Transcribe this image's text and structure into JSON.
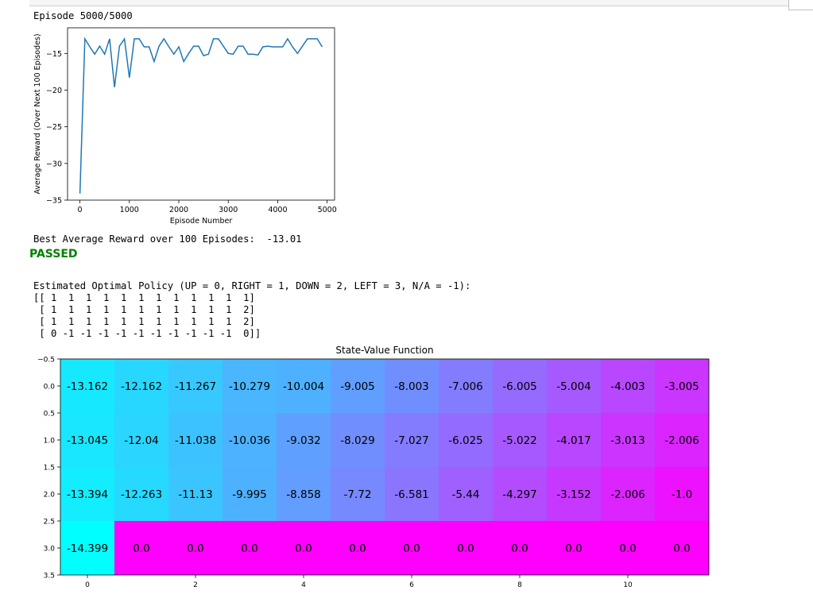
{
  "episode_text": "Episode 5000/5000",
  "best_text": "Best Average Reward over 100 Episodes:  -13.01",
  "passed_text": "PASSED",
  "policy_header": "Estimated Optimal Policy (UP = 0, RIGHT = 1, DOWN = 2, LEFT = 3, N/A = -1):",
  "policy_lines": [
    "[[ 1  1  1  1  1  1  1  1  1  1  1  1]",
    " [ 1  1  1  1  1  1  1  1  1  1  1  2]",
    " [ 1  1  1  1  1  1  1  1  1  1  1  2]",
    " [ 0 -1 -1 -1 -1 -1 -1 -1 -1 -1 -1  0]]"
  ],
  "chart_data": [
    {
      "type": "line",
      "title": "",
      "xlabel": "Episode Number",
      "ylabel": "Average Reward (Over Next 100 Episodes)",
      "xlim": [
        -250,
        5150
      ],
      "ylim": [
        -35,
        -11.5
      ],
      "xticks": [
        0,
        1000,
        2000,
        3000,
        4000,
        5000
      ],
      "yticks": [
        -35,
        -30,
        -25,
        -20,
        -15
      ],
      "grid": false,
      "line_color": "#1f77b4",
      "series": [
        {
          "x": [
            0,
            100,
            200,
            300,
            400,
            500,
            600,
            700,
            800,
            900,
            1000,
            1100,
            1200,
            1300,
            1400,
            1500,
            1600,
            1700,
            1800,
            1900,
            2000,
            2100,
            2200,
            2300,
            2400,
            2500,
            2600,
            2700,
            2800,
            2900,
            3000,
            3100,
            3200,
            3300,
            3400,
            3500,
            3600,
            3700,
            3800,
            3900,
            4000,
            4100,
            4200,
            4300,
            4400,
            4500,
            4600,
            4700,
            4800,
            4900
          ],
          "y": [
            -34.1,
            -13.0,
            -14.1,
            -15.1,
            -14.0,
            -15.1,
            -13.0,
            -19.6,
            -14.0,
            -13.0,
            -18.3,
            -13.0,
            -13.0,
            -14.1,
            -14.1,
            -16.1,
            -14.0,
            -13.0,
            -14.1,
            -15.1,
            -14.1,
            -16.1,
            -15.0,
            -14.0,
            -14.0,
            -15.3,
            -15.1,
            -13.0,
            -13.0,
            -14.0,
            -15.0,
            -15.1,
            -14.0,
            -14.0,
            -15.1,
            -15.1,
            -15.2,
            -14.1,
            -14.0,
            -14.1,
            -14.1,
            -14.1,
            -13.0,
            -14.1,
            -15.0,
            -14.0,
            -13.0,
            -13.0,
            -13.0,
            -14.1
          ]
        }
      ]
    },
    {
      "type": "heatmap",
      "title": "State-Value Function",
      "xlabel": "",
      "ylabel": "",
      "colormap": "cool",
      "xticks": [
        0,
        2,
        4,
        6,
        8,
        10
      ],
      "yticks": [
        -0.5,
        0.0,
        0.5,
        1.0,
        1.5,
        2.0,
        2.5,
        3.0,
        3.5
      ],
      "cell_labels": [
        [
          "-13.162",
          "-12.162",
          "-11.267",
          "-10.279",
          "-10.004",
          "-9.005",
          "-8.003",
          "-7.006",
          "-6.005",
          "-5.004",
          "-4.003",
          "-3.005"
        ],
        [
          "-13.045",
          "-12.04",
          "-11.038",
          "-10.036",
          "-9.032",
          "-8.029",
          "-7.027",
          "-6.025",
          "-5.022",
          "-4.017",
          "-3.013",
          "-2.006"
        ],
        [
          "-13.394",
          "-12.263",
          "-11.13",
          "-9.995",
          "-8.858",
          "-7.72",
          "-6.581",
          "-5.44",
          "-4.297",
          "-3.152",
          "-2.006",
          "-1.0"
        ],
        [
          "-14.399",
          "0.0",
          "0.0",
          "0.0",
          "0.0",
          "0.0",
          "0.0",
          "0.0",
          "0.0",
          "0.0",
          "0.0",
          "0.0"
        ]
      ]
    }
  ]
}
